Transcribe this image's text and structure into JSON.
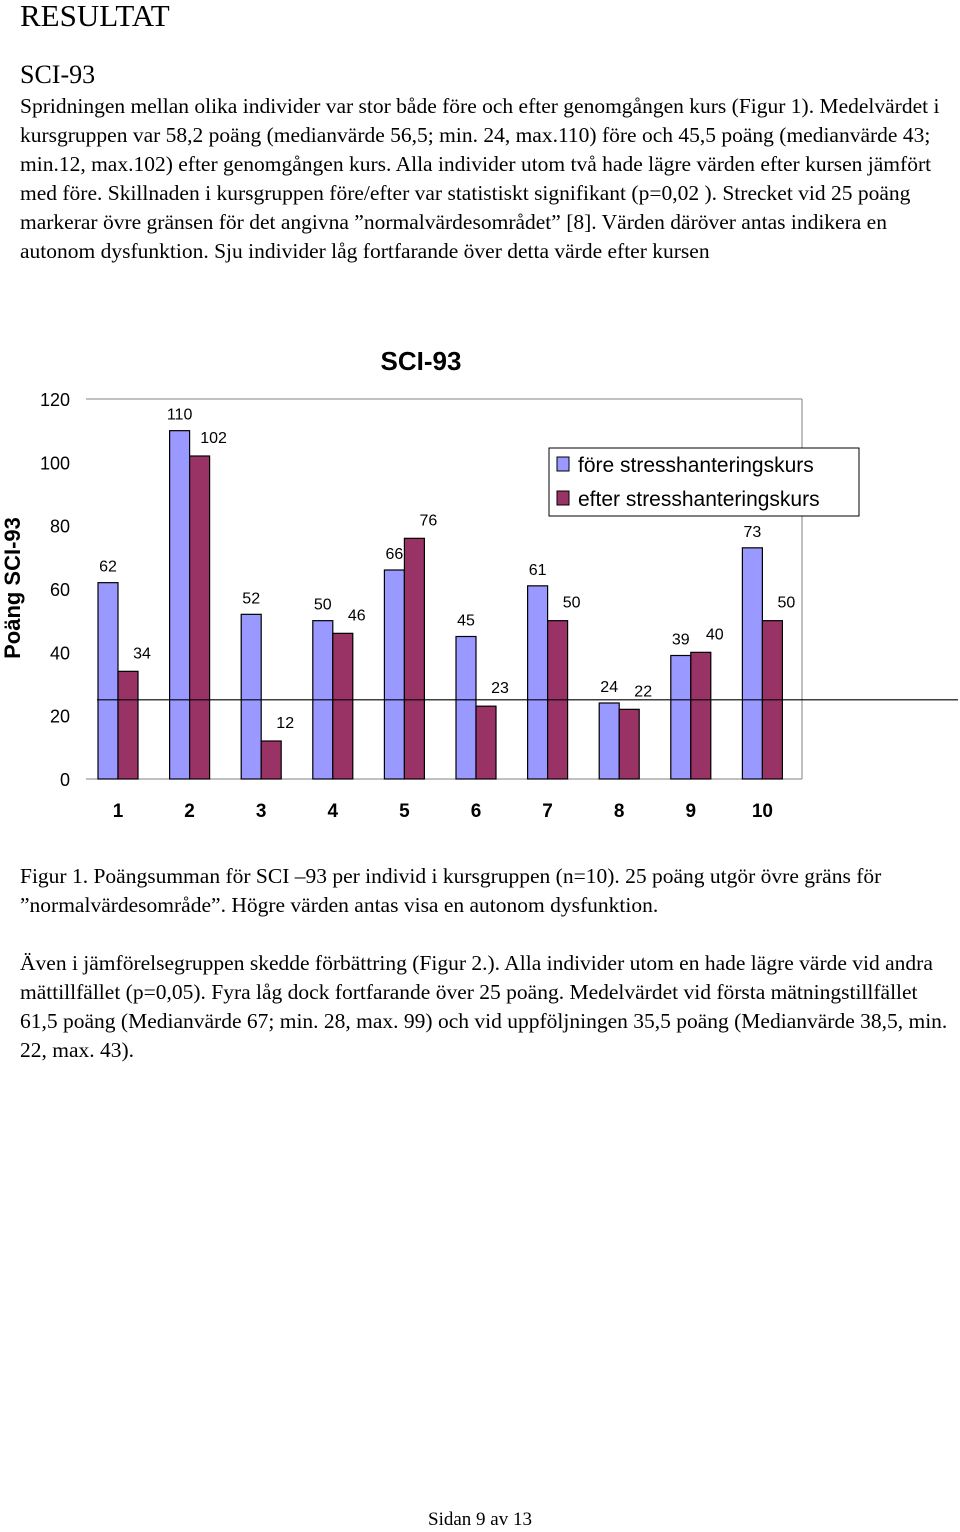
{
  "heading": "RESULTAT",
  "subheading": "SCI-93",
  "intro_paragraph": "Spridningen mellan olika individer var stor både före och efter genomgången kurs (Figur 1). Medelvärdet i kursgruppen var 58,2 poäng (medianvärde 56,5; min. 24, max.110) före och 45,5 poäng (medianvärde 43; min.12, max.102) efter genomgången kurs. Alla individer utom två hade lägre värden efter kursen jämfört med före. Skillnaden i kursgruppen före/efter var statistiskt signifikant (p=0,02 ). Strecket vid 25 poäng markerar övre gränsen för det angivna ”normalvärdesområdet” [8]. Värden däröver antas indikera en autonom dysfunktion. Sju individer låg fortfarande över detta värde efter kursen",
  "figure_caption": "Figur 1. Poängsumman för SCI –93 per individ i kursgruppen (n=10). 25 poäng utgör övre gräns för ”normalvärdesområde”. Högre värden antas visa en autonom dysfunktion.",
  "comparison_paragraph": "Även i jämförelsegruppen skedde förbättring (Figur 2.). Alla individer utom en hade lägre värde vid andra mättillfället (p=0,05). Fyra låg dock fortfarande över 25 poäng. Medelvärdet vid första mätningstillfället 61,5 poäng (Medianvärde 67; min. 28, max. 99) och vid uppföljningen 35,5 poäng (Medianvärde 38,5, min. 22, max. 43).",
  "footer": "Sidan 9 av 13",
  "chart_data": {
    "type": "bar",
    "title": "SCI-93",
    "xlabel": "",
    "ylabel": "Poäng SCI-93",
    "categories": [
      "1",
      "2",
      "3",
      "4",
      "5",
      "6",
      "7",
      "8",
      "9",
      "10"
    ],
    "series": [
      {
        "name": "före stresshanteringskurs",
        "values": [
          62,
          110,
          52,
          50,
          66,
          45,
          61,
          24,
          39,
          73
        ],
        "color": "#9999FF"
      },
      {
        "name": "efter stresshanteringskurs",
        "values": [
          34,
          102,
          12,
          46,
          76,
          23,
          50,
          22,
          40,
          50
        ],
        "color": "#993366"
      }
    ],
    "ylim": [
      0,
      120
    ],
    "yticks": [
      0,
      20,
      40,
      60,
      80,
      100,
      120
    ],
    "reference_line": 25,
    "grid": false,
    "legend_position": "right"
  }
}
